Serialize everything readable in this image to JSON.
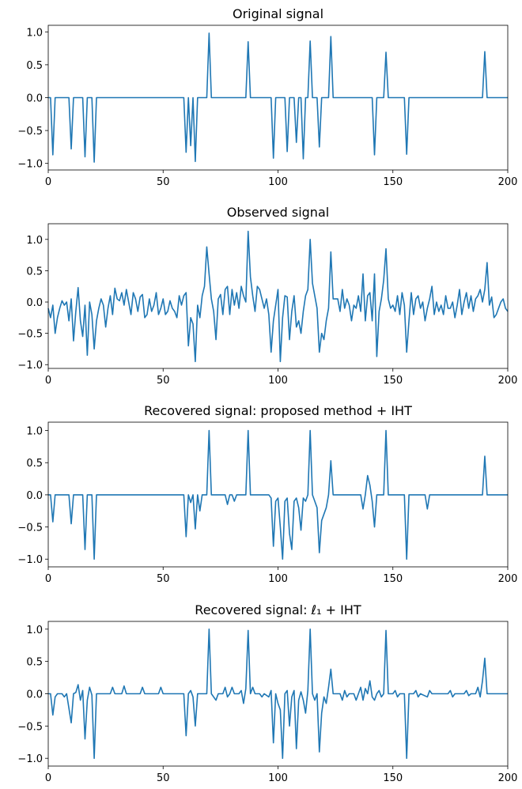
{
  "chart_data": [
    {
      "type": "line",
      "title": "Original signal",
      "color": "#1f77b4",
      "x": [
        0,
        1,
        2,
        3,
        9,
        10,
        11,
        15,
        16,
        17,
        19,
        20,
        21,
        59,
        60,
        61,
        62,
        63,
        64,
        65,
        69,
        70,
        71,
        86,
        87,
        88,
        97,
        98,
        99,
        103,
        104,
        105,
        107,
        108,
        109,
        110,
        111,
        112,
        113,
        114,
        115,
        117,
        118,
        119,
        122,
        123,
        124,
        141,
        142,
        143,
        146,
        147,
        148,
        155,
        156,
        157,
        189,
        190,
        191,
        200
      ],
      "values": [
        0,
        0,
        -0.87,
        0,
        0,
        -0.78,
        0,
        0,
        -0.9,
        0,
        0,
        -0.98,
        0,
        0,
        -0.83,
        0,
        -0.73,
        0,
        -0.97,
        0,
        0,
        0.98,
        0,
        0,
        0.85,
        0,
        0,
        -0.92,
        0,
        0,
        -0.82,
        0,
        0,
        -0.68,
        0,
        0,
        -0.93,
        0,
        0,
        0.86,
        0,
        0,
        -0.75,
        0,
        0,
        0.93,
        0,
        0,
        -0.87,
        0,
        0,
        0.69,
        0,
        0,
        -0.86,
        0,
        0,
        0.7,
        0,
        0
      ],
      "xlim": [
        0,
        200
      ],
      "ylim": [
        -1.1,
        1.1
      ],
      "xticks": [
        0,
        50,
        100,
        150,
        200
      ],
      "yticks": [
        {
          "value": -1,
          "label": "−1.0"
        },
        {
          "value": -0.5,
          "label": "−0.5"
        },
        {
          "value": 0,
          "label": "0.0"
        },
        {
          "value": 0.5,
          "label": "0.5"
        },
        {
          "value": 1,
          "label": "1.0"
        }
      ]
    },
    {
      "type": "line",
      "title": "Observed signal",
      "color": "#1f77b4",
      "x": [
        0,
        1,
        2,
        3,
        4,
        5,
        6,
        7,
        8,
        9,
        10,
        11,
        12,
        13,
        14,
        15,
        16,
        17,
        18,
        19,
        20,
        21,
        22,
        23,
        24,
        25,
        26,
        27,
        28,
        29,
        30,
        31,
        32,
        33,
        34,
        35,
        36,
        37,
        38,
        39,
        40,
        41,
        42,
        43,
        44,
        45,
        46,
        47,
        48,
        49,
        50,
        51,
        52,
        53,
        54,
        55,
        56,
        57,
        58,
        59,
        60,
        61,
        62,
        63,
        64,
        65,
        66,
        67,
        68,
        69,
        70,
        71,
        72,
        73,
        74,
        75,
        76,
        77,
        78,
        79,
        80,
        81,
        82,
        83,
        84,
        85,
        86,
        87,
        88,
        89,
        90,
        91,
        92,
        93,
        94,
        95,
        96,
        97,
        98,
        99,
        100,
        101,
        102,
        103,
        104,
        105,
        106,
        107,
        108,
        109,
        110,
        111,
        112,
        113,
        114,
        115,
        116,
        117,
        118,
        119,
        120,
        121,
        122,
        123,
        124,
        125,
        126,
        127,
        128,
        129,
        130,
        131,
        132,
        133,
        134,
        135,
        136,
        137,
        138,
        139,
        140,
        141,
        142,
        143,
        144,
        145,
        146,
        147,
        148,
        149,
        150,
        151,
        152,
        153,
        154,
        155,
        156,
        157,
        158,
        159,
        160,
        161,
        162,
        163,
        164,
        165,
        166,
        167,
        168,
        169,
        170,
        171,
        172,
        173,
        174,
        175,
        176,
        177,
        178,
        179,
        180,
        181,
        182,
        183,
        184,
        185,
        186,
        187,
        188,
        189,
        190,
        191,
        192,
        193,
        194,
        195,
        196,
        197,
        198,
        199,
        200
      ],
      "values": [
        -0.1,
        -0.25,
        -0.05,
        -0.5,
        -0.25,
        -0.1,
        0.02,
        -0.05,
        0.0,
        -0.3,
        0.05,
        -0.62,
        -0.15,
        0.23,
        -0.3,
        -0.55,
        -0.05,
        -0.85,
        0.0,
        -0.2,
        -0.75,
        -0.3,
        -0.1,
        0.05,
        -0.05,
        -0.4,
        -0.1,
        0.1,
        -0.2,
        0.22,
        0.05,
        0.02,
        0.15,
        -0.05,
        0.2,
        0.0,
        -0.2,
        0.15,
        0.05,
        -0.15,
        0.08,
        0.12,
        -0.25,
        -0.2,
        0.05,
        -0.15,
        -0.05,
        0.15,
        -0.2,
        -0.1,
        0.05,
        -0.2,
        -0.15,
        0.02,
        -0.1,
        -0.15,
        -0.25,
        0.1,
        -0.05,
        0.1,
        0.15,
        -0.7,
        -0.25,
        -0.35,
        -0.95,
        -0.05,
        -0.25,
        0.1,
        0.25,
        0.88,
        0.45,
        0.05,
        -0.15,
        -0.6,
        0.05,
        0.12,
        -0.2,
        0.2,
        0.25,
        -0.2,
        0.2,
        -0.05,
        0.15,
        -0.1,
        0.25,
        0.1,
        0.0,
        1.13,
        0.4,
        0.1,
        -0.15,
        0.25,
        0.2,
        0.05,
        -0.1,
        0.05,
        -0.2,
        -0.8,
        -0.3,
        -0.05,
        0.2,
        -0.95,
        -0.25,
        0.1,
        0.08,
        -0.6,
        -0.15,
        0.1,
        -0.4,
        -0.3,
        -0.5,
        -0.15,
        0.1,
        0.2,
        1.0,
        0.3,
        0.1,
        -0.1,
        -0.8,
        -0.5,
        -0.6,
        -0.3,
        -0.1,
        0.8,
        0.05,
        0.05,
        0.05,
        -0.15,
        0.2,
        -0.1,
        0.05,
        -0.05,
        -0.3,
        -0.05,
        -0.1,
        0.1,
        -0.15,
        0.45,
        -0.3,
        0.1,
        0.15,
        -0.3,
        0.45,
        -0.87,
        -0.15,
        0.05,
        0.35,
        0.85,
        0.05,
        -0.1,
        -0.05,
        -0.15,
        0.1,
        -0.2,
        0.15,
        -0.05,
        -0.8,
        -0.3,
        0.15,
        -0.2,
        0.05,
        0.1,
        -0.1,
        0.0,
        -0.3,
        -0.1,
        0.05,
        0.25,
        -0.2,
        0.0,
        -0.15,
        -0.05,
        -0.2,
        0.1,
        -0.1,
        -0.1,
        0.0,
        -0.25,
        -0.05,
        0.2,
        -0.2,
        0.0,
        0.15,
        -0.1,
        0.1,
        -0.15,
        0.05,
        0.1,
        0.2,
        0.0,
        0.2,
        0.63,
        -0.05,
        0.08,
        -0.25,
        -0.2,
        -0.1,
        0.0,
        0.05,
        -0.1,
        -0.15
      ],
      "xlim": [
        0,
        200
      ],
      "ylim": [
        -1.06,
        1.25
      ],
      "xticks": [
        0,
        50,
        100,
        150,
        200
      ],
      "yticks": [
        {
          "value": -1,
          "label": "−1.0"
        },
        {
          "value": -0.5,
          "label": "−0.5"
        },
        {
          "value": 0,
          "label": "0.0"
        },
        {
          "value": 0.5,
          "label": "0.5"
        },
        {
          "value": 1,
          "label": "1.0"
        }
      ]
    },
    {
      "type": "line",
      "title": "Recovered signal: proposed method + IHT",
      "color": "#1f77b4",
      "x": [
        0,
        1,
        2,
        3,
        9,
        10,
        11,
        15,
        16,
        17,
        19,
        20,
        21,
        59,
        60,
        61,
        62,
        63,
        64,
        65,
        66,
        67,
        69,
        70,
        71,
        77,
        78,
        79,
        80,
        81,
        82,
        86,
        87,
        88,
        96,
        97,
        98,
        99,
        100,
        101,
        102,
        103,
        104,
        105,
        106,
        107,
        108,
        109,
        110,
        111,
        112,
        113,
        114,
        115,
        116,
        117,
        118,
        119,
        120,
        121,
        122,
        123,
        124,
        136,
        137,
        138,
        139,
        140,
        141,
        142,
        143,
        146,
        147,
        148,
        155,
        156,
        157,
        164,
        165,
        166,
        189,
        190,
        191,
        200
      ],
      "values": [
        0,
        0,
        -0.42,
        0,
        0,
        -0.45,
        0,
        0,
        -0.85,
        0,
        0,
        -1.0,
        0,
        0,
        -0.65,
        0,
        -0.12,
        0,
        -0.53,
        0,
        -0.25,
        0,
        0,
        1.0,
        0,
        0,
        -0.15,
        0,
        0,
        -0.1,
        0,
        0,
        1.0,
        0,
        0,
        -0.05,
        -0.8,
        -0.1,
        -0.05,
        -0.5,
        -1.0,
        -0.1,
        -0.05,
        -0.6,
        -0.85,
        -0.1,
        -0.05,
        -0.2,
        -0.55,
        -0.05,
        -0.1,
        0,
        1.0,
        0,
        -0.1,
        -0.2,
        -0.9,
        -0.4,
        -0.3,
        -0.2,
        0,
        0.53,
        0,
        0,
        -0.22,
        0,
        0.3,
        0.15,
        -0.1,
        -0.5,
        0,
        0,
        1.0,
        0,
        0,
        -1.0,
        0,
        0,
        -0.22,
        0,
        0,
        0.6,
        0,
        0
      ],
      "xlim": [
        0,
        200
      ],
      "ylim": [
        -1.12,
        1.13
      ],
      "xticks": [
        0,
        50,
        100,
        150,
        200
      ],
      "yticks": [
        {
          "value": -1,
          "label": "−1.0"
        },
        {
          "value": -0.5,
          "label": "−0.5"
        },
        {
          "value": 0,
          "label": "0.0"
        },
        {
          "value": 0.5,
          "label": "0.5"
        },
        {
          "value": 1,
          "label": "1.0"
        }
      ]
    },
    {
      "type": "line",
      "title": "Recovered signal: ℓ₁ + IHT",
      "color": "#1f77b4",
      "x": [
        0,
        1,
        2,
        3,
        4,
        6,
        7,
        8,
        10,
        11,
        12,
        13,
        14,
        15,
        16,
        17,
        18,
        19,
        20,
        21,
        27,
        28,
        29,
        32,
        33,
        34,
        40,
        41,
        42,
        48,
        49,
        50,
        59,
        60,
        61,
        62,
        63,
        64,
        65,
        69,
        70,
        71,
        73,
        74,
        76,
        77,
        78,
        79,
        80,
        81,
        83,
        84,
        85,
        86,
        87,
        88,
        89,
        90,
        92,
        93,
        94,
        96,
        97,
        98,
        99,
        100,
        101,
        102,
        103,
        104,
        105,
        106,
        107,
        108,
        109,
        110,
        111,
        112,
        113,
        114,
        115,
        116,
        117,
        118,
        119,
        120,
        121,
        122,
        123,
        124,
        127,
        128,
        129,
        130,
        131,
        133,
        134,
        135,
        136,
        137,
        138,
        139,
        140,
        141,
        142,
        143,
        144,
        145,
        146,
        147,
        148,
        150,
        151,
        152,
        153,
        155,
        156,
        157,
        159,
        160,
        161,
        162,
        165,
        166,
        167,
        174,
        175,
        176,
        177,
        181,
        182,
        183,
        184,
        186,
        187,
        188,
        189,
        190,
        191,
        200
      ],
      "values": [
        0,
        0,
        -0.33,
        -0.05,
        0,
        0,
        -0.05,
        0,
        -0.45,
        0,
        0.02,
        0.14,
        -0.1,
        0.05,
        -0.7,
        -0.1,
        0.1,
        -0.02,
        -1.0,
        0,
        0,
        0.1,
        0,
        0,
        0.12,
        0,
        0,
        0.1,
        0,
        0,
        0.1,
        0,
        0,
        -0.65,
        0,
        0.05,
        -0.05,
        -0.5,
        0,
        0,
        1.0,
        0,
        -0.1,
        0,
        0,
        0.1,
        -0.05,
        0,
        0.1,
        0,
        0,
        0.05,
        -0.15,
        0.08,
        0.98,
        0,
        0.1,
        0,
        0,
        -0.05,
        0,
        -0.05,
        0.05,
        -0.76,
        0,
        -0.15,
        -0.25,
        -1.0,
        0,
        0.05,
        -0.5,
        -0.05,
        0.05,
        -0.85,
        -0.1,
        0.03,
        -0.1,
        -0.3,
        0.05,
        1.0,
        0,
        -0.1,
        0,
        -0.9,
        -0.3,
        -0.05,
        -0.15,
        0.1,
        0.38,
        0,
        0,
        -0.1,
        0.05,
        -0.05,
        0,
        0,
        -0.1,
        0,
        0.1,
        -0.1,
        0.08,
        0,
        0.2,
        -0.05,
        -0.1,
        0,
        0.05,
        -0.05,
        0,
        0.98,
        0,
        0,
        0.05,
        -0.05,
        0,
        0,
        -1.0,
        0,
        0,
        0.05,
        -0.05,
        0,
        -0.05,
        0.05,
        0,
        0,
        0.05,
        -0.05,
        0,
        0,
        0.05,
        -0.03,
        0,
        0,
        0.1,
        -0.05,
        0.2,
        0.55,
        0,
        0
      ],
      "xlim": [
        0,
        200
      ],
      "ylim": [
        -1.12,
        1.12
      ],
      "xticks": [
        0,
        50,
        100,
        150,
        200
      ],
      "yticks": [
        {
          "value": -1,
          "label": "−1.0"
        },
        {
          "value": -0.5,
          "label": "−0.5"
        },
        {
          "value": 0,
          "label": "0.0"
        },
        {
          "value": 0.5,
          "label": "0.5"
        },
        {
          "value": 1,
          "label": "1.0"
        }
      ]
    }
  ]
}
